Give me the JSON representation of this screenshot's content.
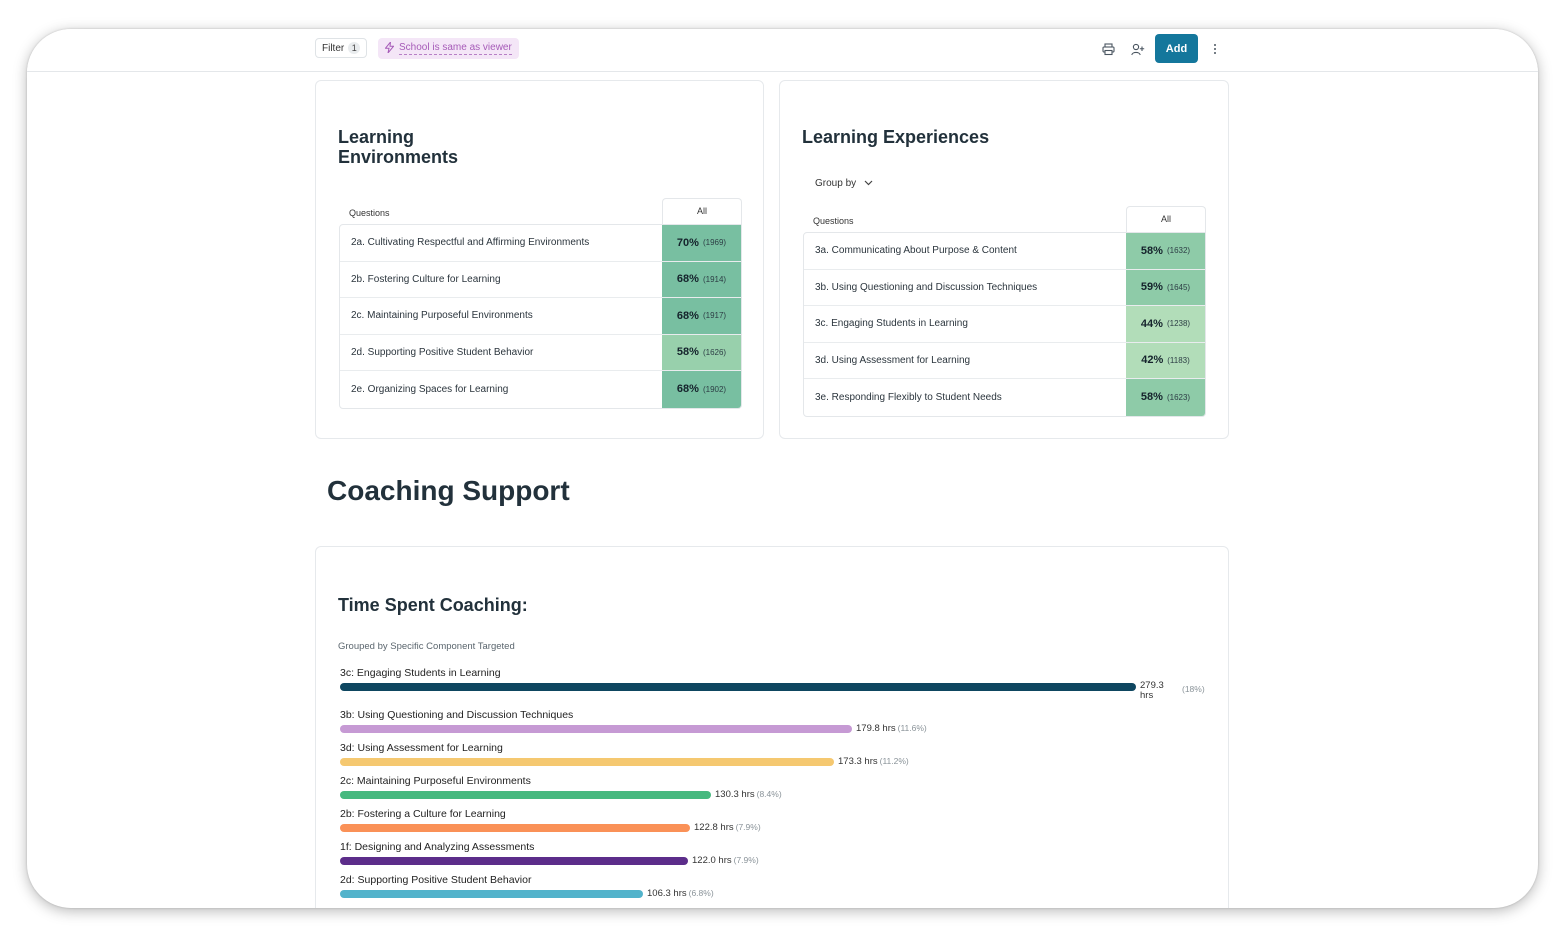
{
  "toolbar": {
    "filter_label": "Filter",
    "filter_count": "1",
    "filter_chip": "School is same as viewer",
    "add_label": "Add",
    "icons": [
      "print-icon",
      "add-user-icon",
      "more-vertical-icon",
      "lightning-icon"
    ]
  },
  "learning_environments": {
    "title_line1": "Learning",
    "title_line2": "Environments",
    "col_questions": "Questions",
    "col_all": "All",
    "rows": [
      {
        "question": "2a. Cultivating Respectful and Affirming Environments",
        "pct": "70%",
        "count": "(1969)",
        "color": "#78bfa1"
      },
      {
        "question": "2b. Fostering Culture for Learning",
        "pct": "68%",
        "count": "(1914)",
        "color": "#78bfa1"
      },
      {
        "question": "2c. Maintaining Purposeful Environments",
        "pct": "68%",
        "count": "(1917)",
        "color": "#78bfa1"
      },
      {
        "question": "2d. Supporting Positive Student Behavior",
        "pct": "58%",
        "count": "(1626)",
        "color": "#98d0ac"
      },
      {
        "question": "2e. Organizing Spaces for Learning",
        "pct": "68%",
        "count": "(1902)",
        "color": "#78bfa1"
      }
    ]
  },
  "learning_experiences": {
    "title": "Learning Experiences",
    "group_by": "Group by",
    "col_questions": "Questions",
    "col_all": "All",
    "rows": [
      {
        "question": "3a. Communicating About Purpose & Content",
        "pct": "58%",
        "count": "(1632)",
        "color": "#8ecba8"
      },
      {
        "question": "3b. Using Questioning and Discussion Techniques",
        "pct": "59%",
        "count": "(1645)",
        "color": "#8ecba8"
      },
      {
        "question": "3c. Engaging Students in Learning",
        "pct": "44%",
        "count": "(1238)",
        "color": "#b2ddb9"
      },
      {
        "question": "3d. Using Assessment for Learning",
        "pct": "42%",
        "count": "(1183)",
        "color": "#b2ddb9"
      },
      {
        "question": "3e. Responding Flexibly to Student Needs",
        "pct": "58%",
        "count": "(1623)",
        "color": "#8ecba8"
      }
    ]
  },
  "coaching": {
    "section_title": "Coaching Support",
    "card_title": "Time Spent Coaching:",
    "subtitle": "Grouped by Specific Component Targeted"
  },
  "chart_data": {
    "type": "bar",
    "orientation": "horizontal",
    "unit": "hrs",
    "categories": [
      "3c: Engaging Students in Learning",
      "3b: Using Questioning and Discussion Techniques",
      "3d: Using Assessment for Learning",
      "2c: Maintaining Purposeful Environments",
      "2b: Fostering a Culture for Learning",
      "1f: Designing and Analyzing Assessments",
      "2d: Supporting Positive Student Behavior"
    ],
    "values": [
      279.3,
      179.8,
      173.3,
      130.3,
      122.8,
      122.0,
      106.3
    ],
    "value_labels": [
      "279.3 hrs",
      "179.8 hrs",
      "173.3 hrs",
      "130.3 hrs",
      "122.8 hrs",
      "122.0 hrs",
      "106.3 hrs"
    ],
    "shares": [
      "(18%)",
      "(11.6%)",
      "(11.2%)",
      "(8.4%)",
      "(7.9%)",
      "(7.9%)",
      "(6.8%)"
    ],
    "colors": [
      "#0e4660",
      "#c69ad4",
      "#f5c870",
      "#46b97f",
      "#fa9157",
      "#5c2d8a",
      "#52b3cb"
    ],
    "xlim": [
      0,
      279.3
    ]
  }
}
